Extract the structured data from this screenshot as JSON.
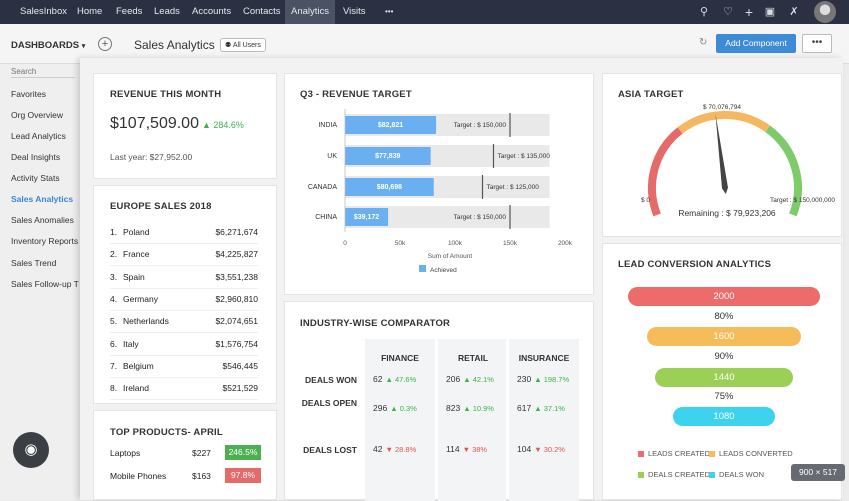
{
  "topbar": {
    "brand": "SalesInbox",
    "nav": [
      "Home",
      "Feeds",
      "Leads",
      "Accounts",
      "Contacts",
      "Analytics",
      "Visits"
    ],
    "active": "Analytics",
    "more": "•••"
  },
  "subbar": {
    "dashboards_label": "DASHBOARDS",
    "page_title": "Sales Analytics",
    "all_users": "All Users",
    "add_component": "Add Component",
    "more": "•••"
  },
  "sidebar": {
    "search_placeholder": "Search",
    "items": [
      "Favorites",
      "Org Overview",
      "Lead Analytics",
      "Deal Insights",
      "Activity Stats",
      "Sales Analytics",
      "Sales Anomalies",
      "Inventory Reports",
      "Sales Trend",
      "Sales Follow-up T"
    ],
    "active": "Sales Analytics"
  },
  "revenue": {
    "title": "REVENUE THIS MONTH",
    "value": "$107,509.00",
    "change": "▲ 284.6%",
    "last_year": "Last year: $27,952.00"
  },
  "europe": {
    "title": "EUROPE SALES 2018",
    "rows": [
      {
        "n": "1.",
        "c": "Poland",
        "v": "$6,271,674"
      },
      {
        "n": "2.",
        "c": "France",
        "v": "$4,225,827"
      },
      {
        "n": "3.",
        "c": "Spain",
        "v": "$3,551,238"
      },
      {
        "n": "4.",
        "c": "Germany",
        "v": "$2,960,810"
      },
      {
        "n": "5.",
        "c": "Netherlands",
        "v": "$2,074,651"
      },
      {
        "n": "6.",
        "c": "Italy",
        "v": "$1,576,754"
      },
      {
        "n": "7.",
        "c": "Belgium",
        "v": "$546,445"
      },
      {
        "n": "8.",
        "c": "Ireland",
        "v": "$521,529"
      }
    ]
  },
  "products": {
    "title": "TOP PRODUCTS- APRIL",
    "rows": [
      {
        "c": "Laptops",
        "v": "$227",
        "b": "246.5%",
        "color": "#4cb050"
      },
      {
        "c": "Mobile Phones",
        "v": "$163",
        "b": "97.8%",
        "color": "#e56a6a"
      }
    ]
  },
  "q3": {
    "title": "Q3 - REVENUE TARGET"
  },
  "chart_data": [
    {
      "type": "bar",
      "title": "Q3 - REVENUE TARGET",
      "categories": [
        "INDIA",
        "UK",
        "CANADA",
        "CHINA"
      ],
      "series": [
        {
          "name": "Achieved",
          "values": [
            82821,
            77839,
            80698,
            39172
          ]
        }
      ],
      "targets": [
        150000,
        135000,
        125000,
        150000
      ],
      "value_labels": [
        "$82,821",
        "$77,839",
        "$80,698",
        "$39,172"
      ],
      "target_labels": [
        "Target : $ 150,000",
        "Target : $ 135,000",
        "Target : $ 125,000",
        "Target : $ 150,000"
      ],
      "xlabel": "Sum of Amount",
      "xticks": [
        "0",
        "50k",
        "100k",
        "150k",
        "200k"
      ],
      "xlim": [
        0,
        200000
      ],
      "bar_color": "#6ab0f0",
      "legend": "bottom"
    },
    {
      "type": "gauge",
      "title": "ASIA TARGET",
      "value": 70076794,
      "min": 0,
      "max": 150000000,
      "top_label": "$ 70,076,794",
      "min_label": "$ 0",
      "max_label": "Target : $ 150,000,000",
      "remaining": "Remaining : $ 79,923,206",
      "colors": [
        "#e56a6a",
        "#f5b860",
        "#7ecb6b"
      ]
    },
    {
      "type": "funnel",
      "title": "LEAD CONVERSION ANALYTICS",
      "values": [
        2000,
        1600,
        1440,
        1080
      ],
      "labels": [
        "2000",
        "1600",
        "1440",
        "1080"
      ],
      "percents": [
        "80%",
        "90%",
        "75%"
      ],
      "colors": [
        "#ed6b6b",
        "#f6bc5a",
        "#9bcf55",
        "#3dd3ee"
      ],
      "legend": [
        "LEADS CREATED",
        "LEADS CONVERTED",
        "DEALS CREATED",
        "DEALS WON"
      ]
    }
  ],
  "asia": {
    "title": "ASIA TARGET"
  },
  "lead": {
    "title": "LEAD CONVERSION ANALYTICS"
  },
  "industry": {
    "title": "INDUSTRY-WISE COMPARATOR",
    "columns": [
      "FINANCE",
      "RETAIL",
      "INSURANCE"
    ],
    "rows": [
      {
        "label": "DEALS WON",
        "cells": [
          {
            "v": "62",
            "d": "▲ 47.6%",
            "up": true
          },
          {
            "v": "206",
            "d": "▲ 42.1%",
            "up": true
          },
          {
            "v": "230",
            "d": "▲ 198.7%",
            "up": true
          }
        ]
      },
      {
        "label": "DEALS OPEN",
        "cells": [
          {
            "v": "296",
            "d": "▲ 0.3%",
            "up": true
          },
          {
            "v": "823",
            "d": "▲ 10.9%",
            "up": true
          },
          {
            "v": "617",
            "d": "▲ 37.1%",
            "up": true
          }
        ]
      },
      {
        "label": "DEALS LOST",
        "cells": [
          {
            "v": "42",
            "d": "▼ 28.8%",
            "up": false
          },
          {
            "v": "114",
            "d": "▼ 38%",
            "up": false
          },
          {
            "v": "104",
            "d": "▼ 30.2%",
            "up": false
          }
        ]
      }
    ]
  },
  "badge": "900 × 517"
}
